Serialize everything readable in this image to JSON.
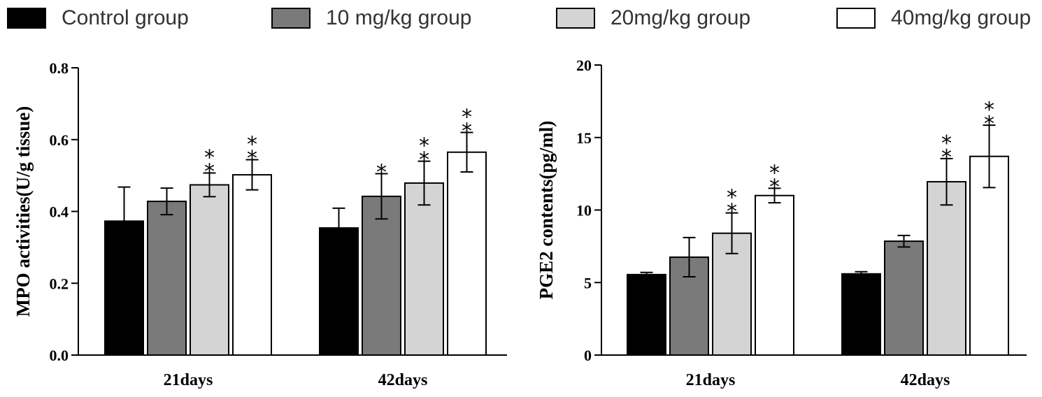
{
  "legend": [
    {
      "label": "Control group",
      "color": "#000000"
    },
    {
      "label": "10 mg/kg group",
      "color": "#7a7a7a"
    },
    {
      "label": "20mg/kg group",
      "color": "#d4d4d4"
    },
    {
      "label": "40mg/kg group",
      "color": "#ffffff"
    }
  ],
  "chart_data": [
    {
      "type": "bar",
      "ylabel": "MPO activities(U/g tissue)",
      "ylim": [
        0,
        0.8
      ],
      "yticks": [
        0.0,
        0.2,
        0.4,
        0.6,
        0.8
      ],
      "ytick_labels": [
        "0.0",
        "0.2",
        "0.4",
        "0.6",
        "0.8"
      ],
      "categories": [
        "21days",
        "42days"
      ],
      "series": [
        {
          "name": "Control group",
          "values": [
            0.373,
            0.354
          ],
          "errors": [
            0.095,
            0.055
          ],
          "marks": [
            "",
            ""
          ]
        },
        {
          "name": "10 mg/kg group",
          "values": [
            0.428,
            0.442
          ],
          "errors": [
            0.037,
            0.063
          ],
          "marks": [
            "",
            "*"
          ]
        },
        {
          "name": "20mg/kg group",
          "values": [
            0.474,
            0.479
          ],
          "errors": [
            0.033,
            0.061
          ],
          "marks": [
            "**",
            "**"
          ]
        },
        {
          "name": "40mg/kg group",
          "values": [
            0.502,
            0.565
          ],
          "errors": [
            0.042,
            0.055
          ],
          "marks": [
            "**",
            "**"
          ]
        }
      ]
    },
    {
      "type": "bar",
      "ylabel": "PGE2 contents(pg/ml)",
      "ylim": [
        0,
        20
      ],
      "yticks": [
        0,
        5,
        10,
        15,
        20
      ],
      "ytick_labels": [
        "0",
        "5",
        "10",
        "15",
        "20"
      ],
      "categories": [
        "21days",
        "42days"
      ],
      "series": [
        {
          "name": "Control group",
          "values": [
            5.55,
            5.6
          ],
          "errors": [
            0.15,
            0.15
          ],
          "marks": [
            "",
            ""
          ]
        },
        {
          "name": "10 mg/kg group",
          "values": [
            6.75,
            7.85
          ],
          "errors": [
            1.35,
            0.4
          ],
          "marks": [
            "",
            ""
          ]
        },
        {
          "name": "20mg/kg group",
          "values": [
            8.4,
            11.95
          ],
          "errors": [
            1.4,
            1.6
          ],
          "marks": [
            "**",
            "**"
          ]
        },
        {
          "name": "40mg/kg group",
          "values": [
            11.0,
            13.7
          ],
          "errors": [
            0.5,
            2.15
          ],
          "marks": [
            "**",
            "**"
          ]
        }
      ]
    }
  ]
}
